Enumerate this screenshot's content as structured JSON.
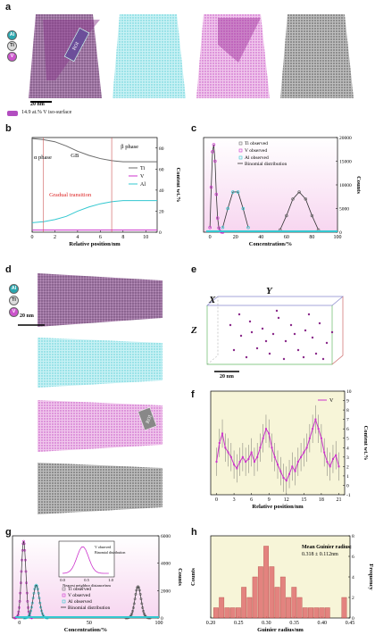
{
  "panels": {
    "a": "a",
    "b": "b",
    "c": "c",
    "d": "d",
    "e": "e",
    "f": "f",
    "g": "g",
    "h": "h"
  },
  "elements": {
    "al": "Al",
    "ti": "Ti",
    "v": "V"
  },
  "colors": {
    "ti": "#6b6b6b",
    "v": "#cc33cc",
    "al": "#33c8d0",
    "bar": "#e07070",
    "bg_pink": "#f7d6f0",
    "bg_yellow": "#f7f5d8",
    "dashed": "#444444"
  },
  "panel_a": {
    "scalebar": "20 nm",
    "roi": "ROI",
    "legend": "14.9 at.% V iso-surface"
  },
  "panel_d": {
    "scalebar": "20 nm",
    "roi": "ROI"
  },
  "panel_e": {
    "x": "X",
    "y": "Y",
    "z": "Z",
    "scalebar": "20 nm"
  },
  "chart_data": [
    {
      "panel": "b",
      "type": "line",
      "xlabel": "Relative position/nm",
      "ylabel": "Content wt.%",
      "xlim": [
        0,
        11
      ],
      "ylim": [
        0,
        90
      ],
      "xticks": [
        0,
        2,
        4,
        6,
        8,
        10
      ],
      "yticks": [
        0,
        20,
        40,
        60,
        80
      ],
      "annotations": {
        "alpha": "α phase",
        "gb": "GB",
        "beta": "β phase",
        "transition": "Gradual transition"
      },
      "series": [
        {
          "name": "Ti",
          "x": [
            0,
            1,
            2,
            3,
            4,
            5,
            6,
            7,
            8,
            9,
            10,
            11
          ],
          "values": [
            89,
            88,
            86,
            82,
            77,
            73,
            70,
            68,
            67,
            67,
            67,
            67
          ]
        },
        {
          "name": "V",
          "x": [
            0,
            1,
            2,
            3,
            4,
            5,
            6,
            7,
            8,
            9,
            10,
            11
          ],
          "values": [
            2,
            2,
            2,
            2,
            2,
            2,
            2,
            2,
            2,
            2,
            2,
            2
          ]
        },
        {
          "name": "Al",
          "x": [
            0,
            1,
            2,
            3,
            4,
            5,
            6,
            7,
            8,
            9,
            10,
            11
          ],
          "values": [
            9,
            10,
            12,
            15,
            20,
            24,
            27,
            29,
            30,
            30,
            30,
            30
          ]
        }
      ]
    },
    {
      "panel": "c",
      "type": "line",
      "xlabel": "Concentration/%",
      "ylabel": "Counts",
      "xlim": [
        -5,
        100
      ],
      "ylim": [
        0,
        20000
      ],
      "xticks": [
        0,
        20,
        40,
        60,
        80,
        100
      ],
      "yticks": [
        0,
        5000,
        10000,
        15000,
        20000
      ],
      "legend": [
        "Ti observed",
        "V observed",
        "Al observed",
        "Binomial distribution"
      ],
      "series": [
        {
          "name": "V observed",
          "x": [
            0,
            1,
            2,
            3,
            4,
            5,
            6,
            7,
            8,
            9,
            10
          ],
          "values": [
            1000,
            9500,
            17000,
            18500,
            15000,
            8000,
            3000,
            900,
            200,
            50,
            0
          ]
        },
        {
          "name": "Al observed",
          "x": [
            10,
            14,
            18,
            22,
            26,
            30
          ],
          "values": [
            1000,
            5000,
            8500,
            8500,
            5000,
            1000
          ]
        },
        {
          "name": "Ti observed",
          "x": [
            55,
            60,
            65,
            70,
            75,
            80,
            85
          ],
          "values": [
            500,
            3500,
            7000,
            8500,
            7000,
            3500,
            500
          ]
        }
      ]
    },
    {
      "panel": "f",
      "type": "line",
      "xlabel": "Relative position/nm",
      "ylabel": "Content wt.%",
      "xlim": [
        -1,
        22
      ],
      "ylim": [
        -1,
        10
      ],
      "xticks": [
        0,
        3,
        6,
        9,
        12,
        15,
        18,
        21
      ],
      "yticks": [
        -1,
        0,
        1,
        2,
        3,
        4,
        5,
        6,
        7,
        8,
        9,
        10
      ],
      "legend": [
        "V"
      ],
      "series": [
        {
          "name": "V",
          "x": [
            0,
            0.5,
            1,
            1.5,
            2,
            2.5,
            3,
            3.5,
            4,
            4.5,
            5,
            5.5,
            6,
            6.5,
            7,
            7.5,
            8,
            8.5,
            9,
            9.5,
            10,
            10.5,
            11,
            11.5,
            12,
            12.5,
            13,
            13.5,
            14,
            14.5,
            15,
            15.5,
            16,
            16.5,
            17,
            17.5,
            18,
            18.5,
            19,
            19.5,
            20,
            20.5,
            21
          ],
          "values": [
            2.5,
            4.5,
            5.5,
            4,
            3.5,
            3,
            2.2,
            1.8,
            2.5,
            3,
            2.5,
            2.8,
            3.5,
            2.5,
            3,
            4,
            5,
            6,
            5.5,
            4,
            3,
            2.2,
            1.5,
            0.8,
            0.5,
            1.2,
            2,
            1.5,
            2.5,
            3,
            3.5,
            4,
            5,
            6,
            7,
            6,
            5,
            3.5,
            2.5,
            2,
            2.8,
            3.2,
            2
          ]
        }
      ]
    },
    {
      "panel": "g",
      "type": "line",
      "xlabel": "Concentration/%",
      "ylabel": "Counts",
      "xlim": [
        -5,
        100
      ],
      "ylim": [
        0,
        6000
      ],
      "xticks": [
        0,
        50,
        100
      ],
      "yticks": [
        0,
        2000,
        4000,
        6000
      ],
      "legend": [
        "Ti observed",
        "V observed",
        "Al observed",
        "Binomial distribution"
      ],
      "inset": {
        "xlabel": "Nearest neighbor distance/nm",
        "ylabel": "Counts",
        "xticks": [
          0.0,
          0.5,
          1.0
        ],
        "yticks": [
          0,
          500,
          1000
        ],
        "legend": [
          "V observed",
          "Binomial distribution"
        ]
      }
    },
    {
      "panel": "h",
      "type": "bar",
      "xlabel": "Guinier radius/nm",
      "ylabel": "Frequency",
      "ylabel2": "Counts",
      "xlim": [
        0.2,
        0.45
      ],
      "ylim": [
        0,
        8
      ],
      "xticks": [
        0.2,
        0.25,
        0.3,
        0.35,
        0.4,
        0.45
      ],
      "yticks": [
        0,
        2,
        4,
        6,
        8
      ],
      "annotation": "Mean Guinier radius: 0.318 ± 0.112nm",
      "categories": [
        0.21,
        0.22,
        0.23,
        0.24,
        0.25,
        0.26,
        0.27,
        0.28,
        0.29,
        0.3,
        0.31,
        0.32,
        0.33,
        0.34,
        0.35,
        0.36,
        0.37,
        0.38,
        0.39,
        0.4,
        0.41,
        0.44
      ],
      "values": [
        1,
        2,
        1,
        1,
        1,
        3,
        2,
        4,
        5,
        7,
        5,
        3,
        4,
        2,
        3,
        2,
        1,
        1,
        1,
        1,
        1,
        2
      ]
    }
  ]
}
